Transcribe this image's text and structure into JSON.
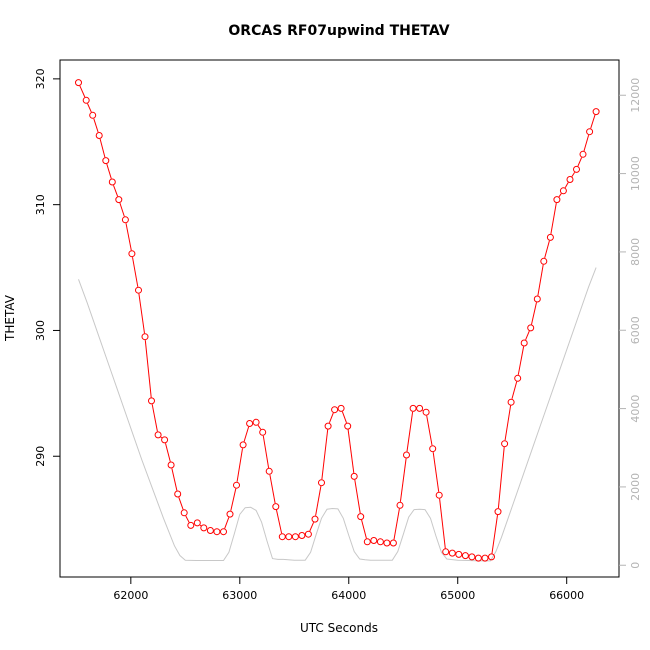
{
  "chart_data": {
    "type": "line",
    "title": "ORCAS RF07upwind THETAV",
    "xlabel": "UTC Seconds",
    "ylabel": "THETAV",
    "xlim": [
      61350,
      66480
    ],
    "ylim": [
      280.4,
      321.5
    ],
    "y2lim": [
      -300,
      12900
    ],
    "x_ticks": [
      62000,
      63000,
      64000,
      65000,
      66000
    ],
    "y_ticks": [
      290,
      300,
      310,
      320
    ],
    "y2_ticks": [
      0,
      2000,
      4000,
      6000,
      8000,
      10000,
      12000
    ],
    "grid": false,
    "colors": {
      "thetav": "#ff0000",
      "altitude": "#c8c8c8"
    },
    "series": [
      {
        "role": "thetav",
        "axis": "left",
        "style": "points-and-lines",
        "x": [
          61520,
          61590,
          61650,
          61710,
          61770,
          61830,
          61890,
          61950,
          62010,
          62070,
          62130,
          62190,
          62250,
          62310,
          62370,
          62430,
          62490,
          62550,
          62610,
          62670,
          62730,
          62790,
          62850,
          62910,
          62970,
          63030,
          63090,
          63150,
          63210,
          63270,
          63330,
          63390,
          63450,
          63510,
          63570,
          63630,
          63690,
          63750,
          63810,
          63870,
          63930,
          63990,
          64050,
          64110,
          64170,
          64230,
          64290,
          64350,
          64410,
          64470,
          64530,
          64590,
          64650,
          64710,
          64770,
          64830,
          64890,
          64950,
          65010,
          65070,
          65130,
          65190,
          65250,
          65310,
          65370,
          65430,
          65490,
          65550,
          65610,
          65670,
          65730,
          65790,
          65850,
          65910,
          65970,
          66030,
          66090,
          66150,
          66210,
          66270
        ],
        "y": [
          319.7,
          318.3,
          317.1,
          315.5,
          313.5,
          311.8,
          310.4,
          308.8,
          306.1,
          303.2,
          299.5,
          294.4,
          291.7,
          291.3,
          289.3,
          287.0,
          285.5,
          284.5,
          284.7,
          284.3,
          284.1,
          284.0,
          284.0,
          285.4,
          287.7,
          290.9,
          292.6,
          292.7,
          291.9,
          288.8,
          286.0,
          283.6,
          283.6,
          283.6,
          283.7,
          283.8,
          285.0,
          287.9,
          292.4,
          293.7,
          293.8,
          292.4,
          288.4,
          285.2,
          283.2,
          283.3,
          283.2,
          283.1,
          283.1,
          286.1,
          290.1,
          293.8,
          293.8,
          293.5,
          290.6,
          286.9,
          282.4,
          282.3,
          282.2,
          282.1,
          282.0,
          281.9,
          281.9,
          282.0,
          285.6,
          291.0,
          294.3,
          296.2,
          299.0,
          300.2,
          302.5,
          305.5,
          307.4,
          310.4,
          311.1,
          312.0,
          312.8,
          314.0,
          315.8,
          317.4
        ]
      },
      {
        "role": "altitude",
        "axis": "right",
        "style": "line",
        "x": [
          61520,
          61600,
          61700,
          61800,
          61900,
          62000,
          62100,
          62200,
          62300,
          62400,
          62450,
          62500,
          62600,
          62700,
          62800,
          62850,
          62900,
          62950,
          63000,
          63050,
          63100,
          63150,
          63200,
          63250,
          63300,
          63350,
          63400,
          63500,
          63600,
          63650,
          63700,
          63750,
          63800,
          63850,
          63900,
          63950,
          64000,
          64050,
          64100,
          64150,
          64200,
          64300,
          64400,
          64450,
          64500,
          64550,
          64600,
          64650,
          64700,
          64750,
          64800,
          64850,
          64900,
          65000,
          65100,
          65200,
          65300,
          65350,
          65400,
          65500,
          65600,
          65700,
          65800,
          65900,
          66000,
          66100,
          66200,
          66270
        ],
        "y": [
          7300,
          6700,
          5900,
          5100,
          4300,
          3500,
          2700,
          1950,
          1200,
          500,
          250,
          130,
          120,
          120,
          120,
          120,
          330,
          800,
          1300,
          1470,
          1480,
          1400,
          1100,
          620,
          170,
          150,
          150,
          130,
          130,
          330,
          780,
          1200,
          1430,
          1450,
          1440,
          1200,
          760,
          350,
          160,
          140,
          130,
          130,
          130,
          350,
          780,
          1230,
          1420,
          1430,
          1420,
          1200,
          750,
          330,
          160,
          130,
          120,
          110,
          110,
          350,
          700,
          1500,
          2300,
          3100,
          3900,
          4700,
          5500,
          6300,
          7100,
          7600
        ]
      }
    ]
  }
}
